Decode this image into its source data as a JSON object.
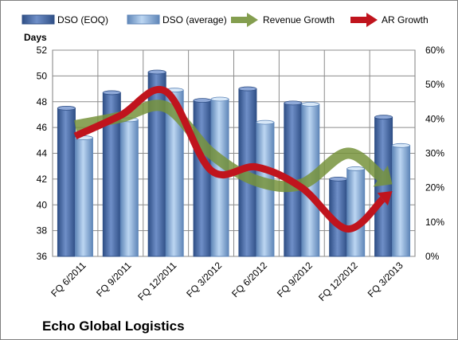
{
  "chart_data": {
    "type": "bar",
    "caption": "Echo Global Logistics",
    "y_unit_label": "Days",
    "categories": [
      "FQ 6/2011",
      "FQ 9/2011",
      "FQ 12/2011",
      "FQ 3/2012",
      "FQ 6/2012",
      "FQ 9/2012",
      "FQ 12/2012",
      "FQ 3/2013"
    ],
    "ylim": [
      36,
      52
    ],
    "yticks": [
      "36",
      "38",
      "40",
      "42",
      "44",
      "46",
      "48",
      "50",
      "52"
    ],
    "y2lim": [
      0,
      60
    ],
    "y2ticks": [
      "0%",
      "10%",
      "20%",
      "30%",
      "40%",
      "50%",
      "60%"
    ],
    "grid": true,
    "legend_position": "top",
    "series": [
      {
        "name": "DSO (EOQ)",
        "kind": "bar",
        "axis": "left",
        "color": "#4f6fa8",
        "values": [
          47.5,
          48.7,
          50.3,
          48.1,
          49.0,
          47.9,
          42.0,
          46.8
        ]
      },
      {
        "name": "DSO (average)",
        "kind": "bar",
        "axis": "left",
        "color": "#7fa6d6",
        "values": [
          45.2,
          46.6,
          48.9,
          48.2,
          46.4,
          47.8,
          42.8,
          44.6
        ]
      },
      {
        "name": "Revenue Growth",
        "kind": "arrow-line",
        "axis": "right",
        "color": "#77933c",
        "values": [
          38,
          40.5,
          43.5,
          30,
          22,
          21,
          30,
          21
        ]
      },
      {
        "name": "AR Growth",
        "kind": "arrow-line",
        "axis": "right",
        "color": "#c0141d",
        "values": [
          35,
          41,
          48,
          25,
          26,
          20,
          8,
          19
        ]
      }
    ]
  }
}
